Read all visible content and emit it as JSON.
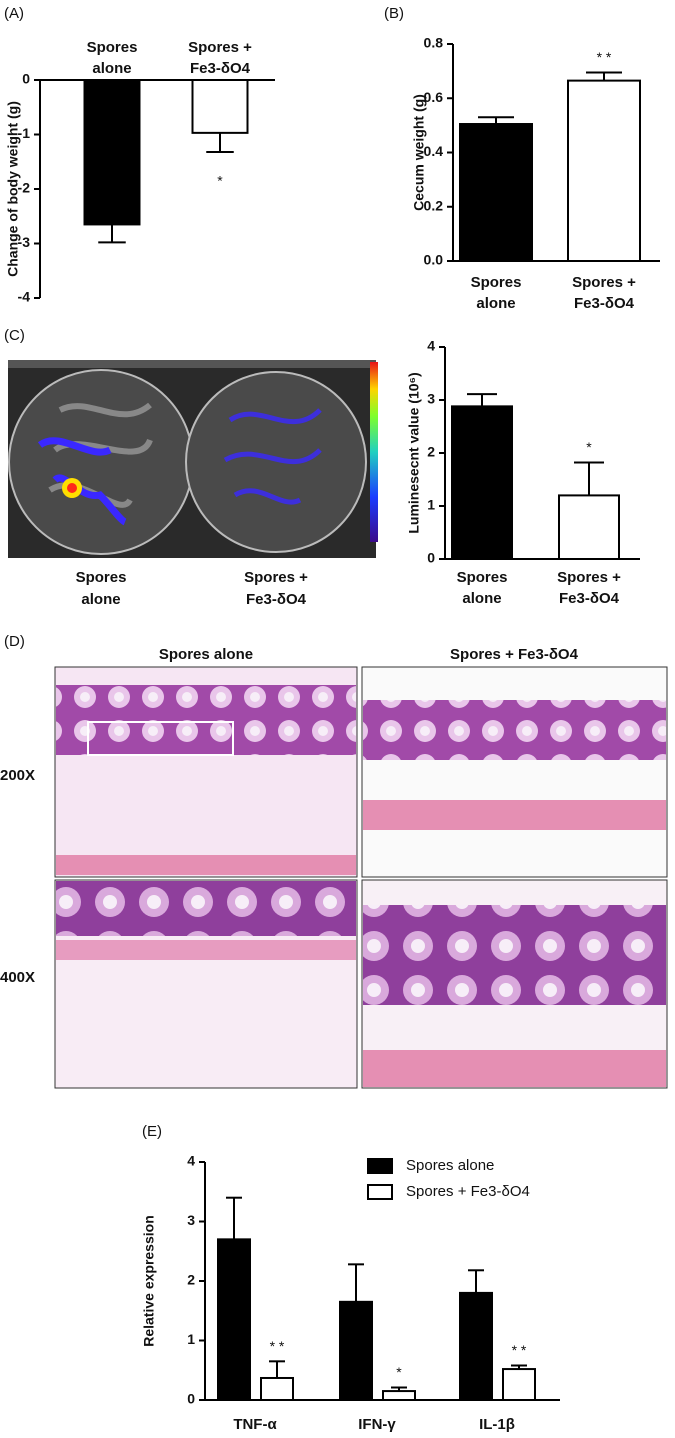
{
  "chart_data": [
    {
      "type": "bar",
      "panel": "(A)",
      "y_label": "Change of body weight (g)",
      "categories": [
        [
          "Spores",
          "alone"
        ],
        [
          "Spores +",
          "Fe3-δO4"
        ]
      ],
      "values": [
        -2.65,
        -0.97
      ],
      "errors": [
        0.33,
        0.35
      ],
      "colors": [
        "#000000",
        "#ffffff"
      ],
      "significance": [
        null,
        "*"
      ],
      "ylim": [
        -4,
        0
      ],
      "yticks": [
        0,
        -1,
        -2,
        -3,
        -4
      ]
    },
    {
      "type": "bar",
      "panel": "(B)",
      "y_label": "Cecum weight (g)",
      "categories": [
        [
          "Spores",
          "alone"
        ],
        [
          "Spores +",
          "Fe3-δO4"
        ]
      ],
      "values": [
        0.505,
        0.665
      ],
      "errors": [
        0.025,
        0.03
      ],
      "colors": [
        "#000000",
        "#ffffff"
      ],
      "significance": [
        null,
        "* *"
      ],
      "ylim": [
        0,
        0.8
      ],
      "yticks": [
        {
          "value": 0,
          "label": "0.0"
        },
        0.2,
        0.4,
        0.6,
        0.8
      ]
    },
    {
      "type": "bar",
      "panel": "(C)",
      "y_label": "Luminesecnt value (10⁶)",
      "categories": [
        [
          "Spores",
          "alone"
        ],
        [
          "Spores +",
          "Fe3-δO4"
        ]
      ],
      "values": [
        2.88,
        1.2
      ],
      "errors": [
        0.23,
        0.62
      ],
      "colors": [
        "#000000",
        "#ffffff"
      ],
      "significance": [
        null,
        "*"
      ],
      "ylim": [
        0,
        4
      ],
      "yticks": [
        0,
        1,
        2,
        3,
        4
      ]
    },
    {
      "type": "grouped_bar",
      "panel": "(E)",
      "y_label": "Relative expression",
      "categories": [
        "TNF-α",
        "IFN-γ",
        "IL-1β"
      ],
      "series": [
        {
          "name": "Spores alone",
          "color": "#000000",
          "values": [
            2.7,
            1.65,
            1.8
          ],
          "errors": [
            0.7,
            0.63,
            0.38
          ]
        },
        {
          "name": "Spores + Fe3-δO4",
          "color": "#ffffff",
          "values": [
            0.37,
            0.15,
            0.52
          ],
          "errors": [
            0.28,
            0.06,
            0.06
          ],
          "significance": [
            "* *",
            "*",
            "* *"
          ]
        }
      ],
      "ylim": [
        0,
        4
      ],
      "yticks": [
        0,
        1,
        2,
        3,
        4
      ]
    }
  ],
  "luminescence_image": {
    "labels": [
      [
        "Spores",
        "alone"
      ],
      [
        "Spores +",
        "Fe3-δO4"
      ]
    ]
  },
  "histology": {
    "panel": "(D)",
    "column_titles": [
      "Spores alone",
      "Spores + Fe3-δO4"
    ],
    "row_labels": [
      "200X",
      "400X"
    ]
  }
}
